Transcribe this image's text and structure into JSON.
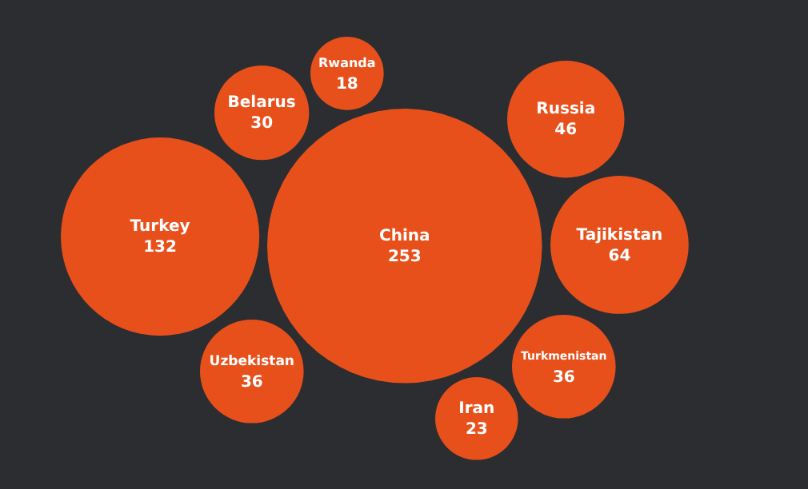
{
  "chart_data": {
    "type": "other",
    "categories": [
      "Belarus",
      "Turkey",
      "Rwanda",
      "Iran",
      "Turkmenistan",
      "Tajikistan",
      "Uzbekistan",
      "Russia",
      "China"
    ],
    "values": [
      30,
      132,
      18,
      23,
      36,
      64,
      36,
      46,
      253
    ],
    "color": "#e8501b",
    "data_labels": true
  }
}
